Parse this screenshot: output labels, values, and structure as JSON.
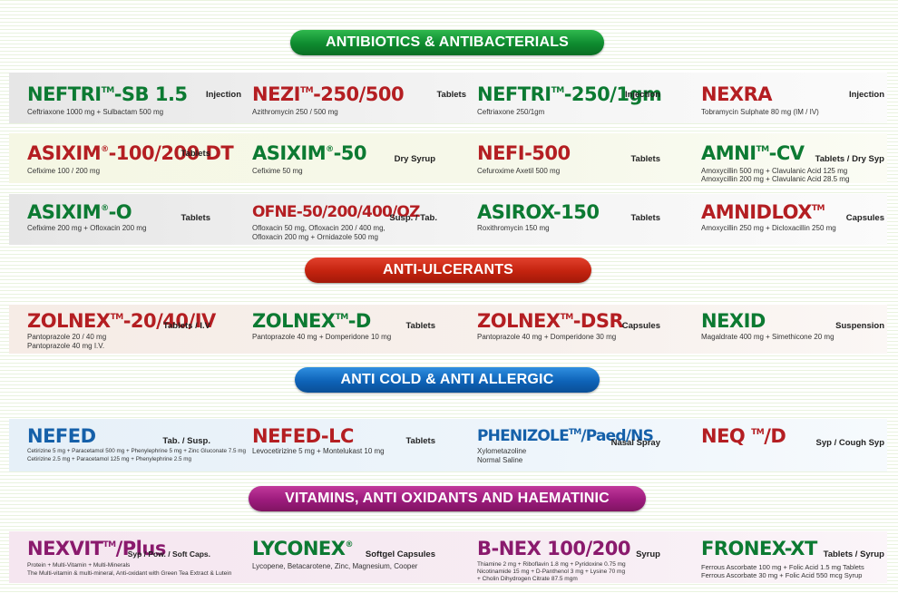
{
  "sections": {
    "antibiotics": "ANTIBIOTICS & ANTIBACTERIALS",
    "antiulcerants": "ANTI-ULCERANTS",
    "anticold": "ANTI COLD & ANTI ALLERGIC",
    "vitamins": "VITAMINS, ANTI OXIDANTS AND HAEMATINIC"
  },
  "colors": {
    "green_text": "#0c7a32",
    "red_text": "#b41e22",
    "magenta_text": "#8a1a6d",
    "green_pill": "#0e8a2f",
    "red_pill": "#c3230f",
    "blue_pill": "#0e63b8",
    "magenta_pill": "#9c1b7c"
  },
  "products": {
    "neftri_sb": {
      "base": "NEFTRI",
      "tm": "TM",
      "rest": "-SB 1.5",
      "form": "Injection",
      "desc": [
        "Ceftriaxone 1000 mg + Sulbactam 500 mg"
      ]
    },
    "nezi": {
      "base": "NEZI",
      "tm": "TM",
      "rest": "-250/500",
      "form": "Tablets",
      "desc": [
        "Azithromycin 250 / 500 mg"
      ]
    },
    "neftri_250": {
      "base": "NEFTRI",
      "tm": "TM",
      "rest": "-250/1gm",
      "form": "Injection",
      "desc": [
        "Ceftriaxone 250/1gm"
      ]
    },
    "nexra": {
      "base": "NEXRA",
      "form": "Injection",
      "desc": [
        "Tobramycin Sulphate 80 mg (IM / IV)"
      ]
    },
    "asixim_dt": {
      "base": "ASIXIM",
      "tm": "®",
      "rest": "-100/200 DT",
      "form": "Tablets",
      "desc": [
        "Cefixime 100 / 200 mg"
      ]
    },
    "asixim_50": {
      "base": "ASIXIM",
      "tm": "®",
      "rest": "-50",
      "form": "Dry Syrup",
      "desc": [
        "Cefixime 50 mg"
      ]
    },
    "nefi": {
      "base": "NEFI-500",
      "form": "Tablets",
      "desc": [
        "Cefuroxime Axetil 500 mg"
      ]
    },
    "amni_cv": {
      "base": "AMNI",
      "tm": "TM",
      "rest": "-CV",
      "form": "Tablets / Dry Syp",
      "desc": [
        "Amoxycillin 500 mg + Clavulanic Acid 125 mg",
        "Amoxycillin 200 mg + Clavulanic Acid 28.5 mg"
      ]
    },
    "asixim_o": {
      "base": "ASIXIM",
      "tm": "®",
      "rest": "-O",
      "form": "Tablets",
      "desc": [
        "Cefixime 200 mg + Ofloxacin 200 mg"
      ]
    },
    "ofne": {
      "base": "OFNE-50/200/400/OZ",
      "form": "Susp. / Tab.",
      "desc": [
        "Ofloxacin 50 mg, Ofloxacin 200 / 400 mg,",
        "Ofloxacin 200 mg + Ornidazole 500 mg"
      ]
    },
    "asirox": {
      "base": "ASIROX-150",
      "form": "Tablets",
      "desc": [
        "Roxithromycin 150 mg"
      ]
    },
    "amnidlox": {
      "base": "AMNIDLOX",
      "tm": "TM",
      "rest": "",
      "form": "Capsules",
      "desc": [
        "Amoxycillin 250 mg + Dicloxacillin 250 mg"
      ]
    },
    "zolnex": {
      "base": "ZOLNEX",
      "tm": "TM",
      "rest": "-20/40/IV",
      "form": "Tablets / I.V",
      "desc": [
        "Pantoprazole 20 / 40 mg",
        "Pantoprazole 40 mg I.V."
      ]
    },
    "zolnex_d": {
      "base": "ZOLNEX",
      "tm": "TM",
      "rest": "-D",
      "form": "Tablets",
      "desc": [
        "Pantoprazole 40 mg + Domperidone 10 mg"
      ]
    },
    "zolnex_dsr": {
      "base": "ZOLNEX",
      "tm": "TM",
      "rest": "-DSR",
      "form": "Capsules",
      "desc": [
        "Pantoprazole 40 mg + Domperidone 30 mg"
      ]
    },
    "nexid": {
      "base": "NEXID",
      "form": "Suspension",
      "desc": [
        "Magaldrate 400 mg + Simethicone 20 mg"
      ]
    },
    "nefed": {
      "base": "NEFED",
      "form": "Tab. / Susp.",
      "desc": [
        "Cetirizine 5 mg + Paracetamol 500 mg + Phenylephrine 5 mg + Zinc Gluconate 7.5 mg",
        "Cetirizine 2.5 mg + Paracetamol 125 mg + Phenylephrine 2.5 mg"
      ]
    },
    "nefed_lc": {
      "base": "NEFED-LC",
      "form": "Tablets",
      "desc": [
        "Levocetirizine 5 mg + Montelukast 10 mg"
      ]
    },
    "phenizole": {
      "base": "PHENIZOLE",
      "tm": "TM",
      "rest": "/Paed/NS",
      "form": "Nasal Spray",
      "desc": [
        "Xylometazoline",
        "Normal Saline"
      ]
    },
    "neq_d": {
      "base": "NEQ ",
      "tm": "TM",
      "rest": "/D",
      "form": "Syp / Cough Syp",
      "desc": []
    },
    "nexvit": {
      "base": "NEXVIT",
      "tm": "TM",
      "rest": "/Plus",
      "form": "Syp / Pow. / Soft Caps.",
      "desc": [
        "Protein + Multi-Vitamin + Multi-Minerals",
        "The Multi-vitamin & multi-mineral, Anti-oxidant with Green Tea Extract & Lutein"
      ]
    },
    "lyconex": {
      "base": "LYCONEX",
      "tm": "®",
      "rest": "",
      "form": "Softgel Capsules",
      "desc": [
        "Lycopene, Betacarotene, Zinc, Magnesium, Cooper"
      ]
    },
    "bnex": {
      "base": "B-NEX 100/200",
      "form": "Syrup",
      "desc": [
        "Thiamine 2 mg + Riboflavin 1.8 mg + Pyridoxine  0.75 mg",
        "Nicotinamide 15 mg + D-Panthenol 3 mg + Lysine 70 mg",
        "+ Cholin Dihydrogen Citrate 87.5 mgm"
      ]
    },
    "fronex": {
      "base": "FRONEX-XT",
      "form": "Tablets / Syrup",
      "desc": [
        "Ferrous Ascorbate 100 mg + Folic Acid 1.5 mg  Tablets",
        "Ferrous Ascorbate 30 mg + Folic Acid 550 mcg  Syrup"
      ]
    }
  }
}
